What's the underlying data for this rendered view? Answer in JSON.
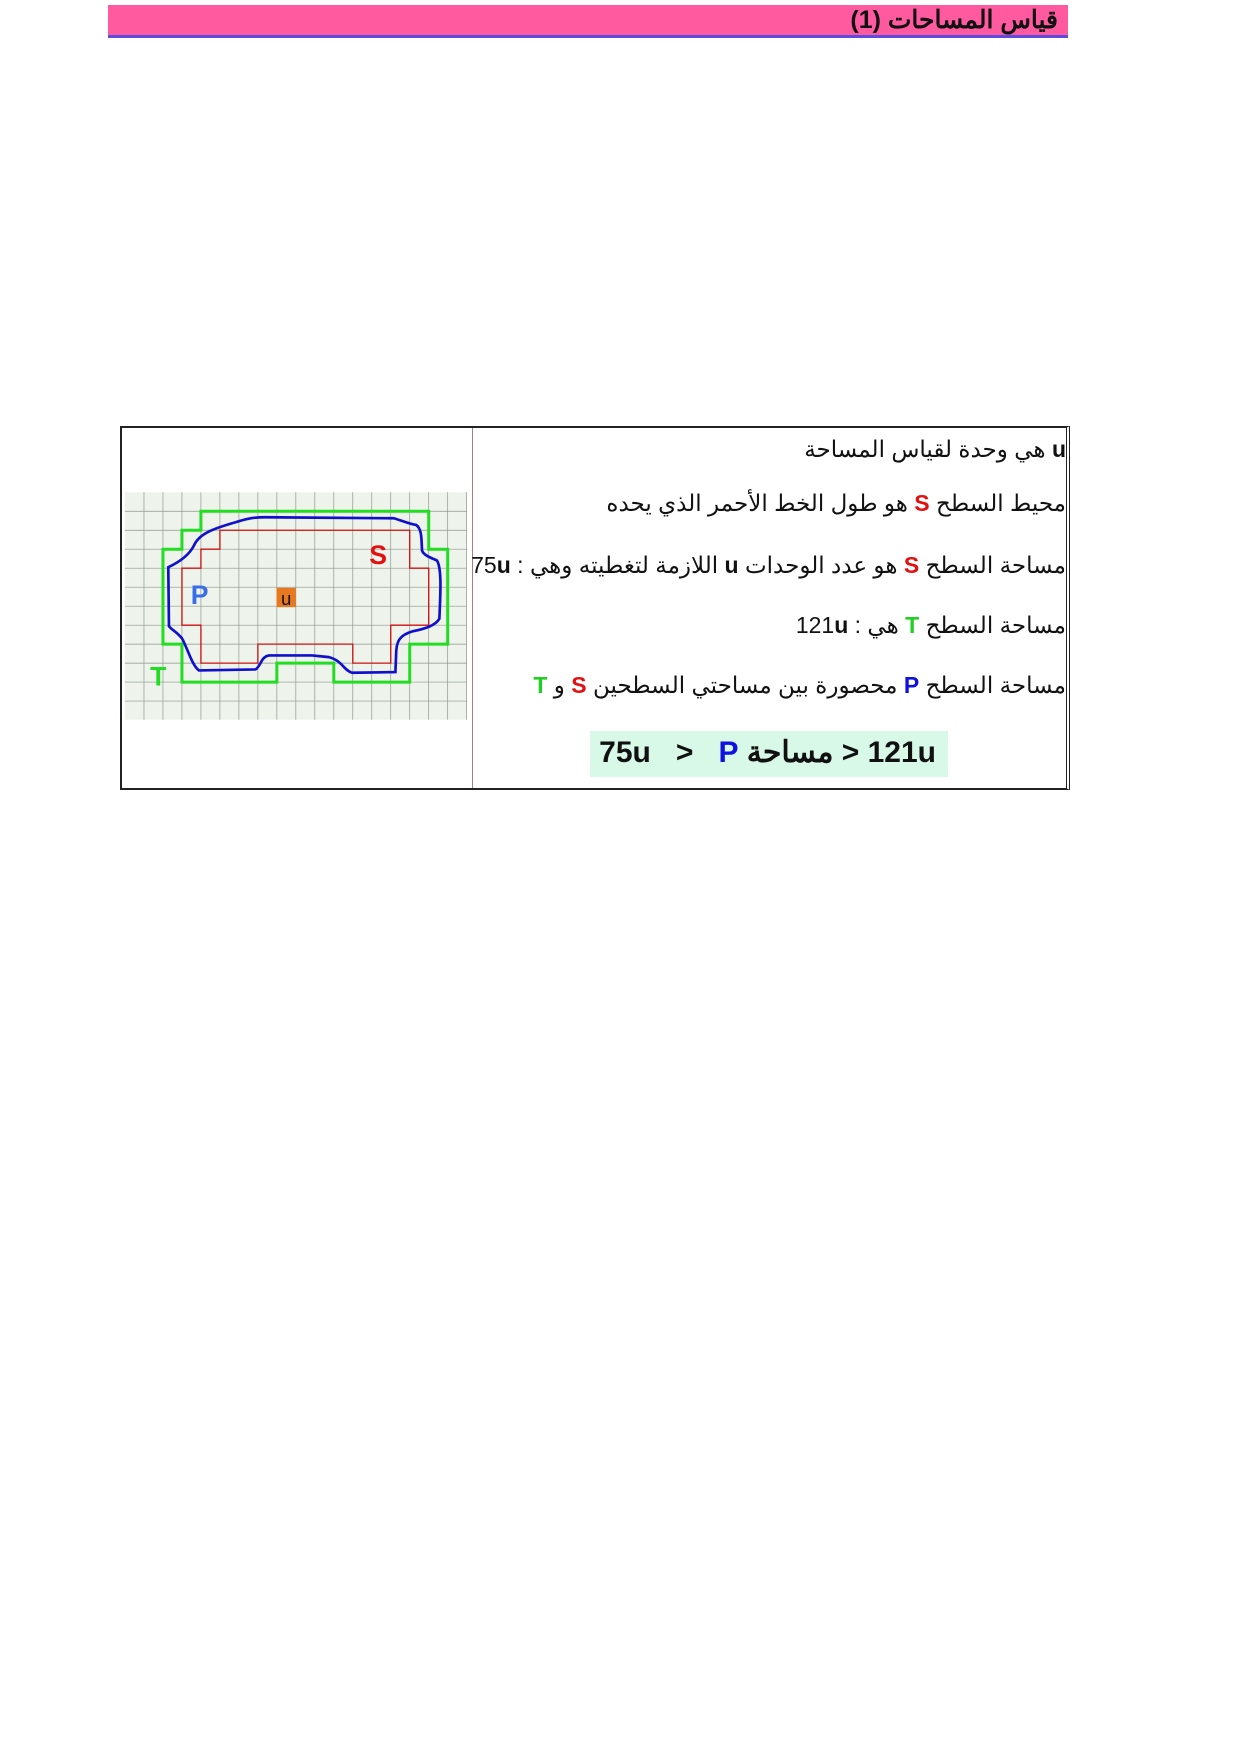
{
  "header": {
    "title": "قياس المساحات (1)"
  },
  "figure": {
    "label_s": "S",
    "label_p": "P",
    "label_u": "u",
    "label_t": "T",
    "colors": {
      "T": "#22dd22",
      "S": "#cc1111",
      "P": "#1010cc",
      "u_box": "#e87820",
      "grid_bg": "#eef4ec"
    }
  },
  "text": {
    "line1": {
      "u": "u",
      "rest": " هي وحدة لقياس المساحة"
    },
    "line2": {
      "a": "محيط السطح ",
      "s": "S",
      "b": " هو طول الخط الأحمر الذي يحده"
    },
    "line3": {
      "a": "مساحة السطح ",
      "s": "S",
      "b": " هو عدد الوحدات ",
      "u": "u",
      "c": " اللازمة لتغطيته وهي : ",
      "num": "75",
      "unit": "u"
    },
    "line4": {
      "a": "مساحة السطح ",
      "t": "T",
      "b": " هي : ",
      "num": "121",
      "unit": "u"
    },
    "line5": {
      "a": "مساحة السطح ",
      "p": "P",
      "b": " محصورة بين مساحتي السطحين ",
      "s": "S",
      "c": " و ",
      "t": "T"
    },
    "inequality": {
      "left": "121u",
      "op1": "<",
      "label": "مساحة ",
      "p": "P",
      "op2": "<",
      "right": "75u"
    }
  }
}
